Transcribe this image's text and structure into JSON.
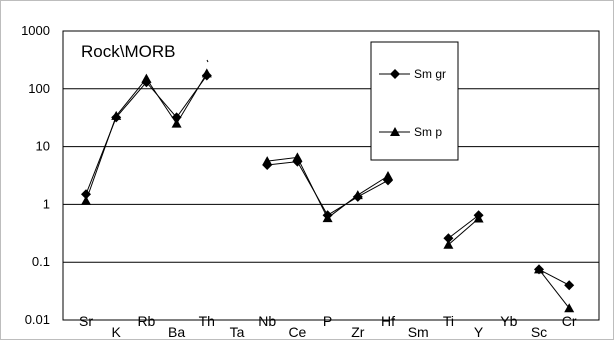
{
  "chart_data": {
    "type": "line",
    "title": "Rock\\MORB",
    "xlabel": "",
    "ylabel": "",
    "y_scale": "log",
    "ylim": [
      0.01,
      1000
    ],
    "y_ticks": [
      "0.01",
      "0.1",
      "1",
      "10",
      "100",
      "1000"
    ],
    "grid": "horizontal",
    "legend_position": "top-right",
    "categories": [
      "Sr",
      "K",
      "Rb",
      "Ba",
      "Th",
      "Ta",
      "Nb",
      "Ce",
      "P",
      "Zr",
      "Hf",
      "Sm",
      "Ti",
      "Y",
      "Yb",
      "Sc",
      "Cr"
    ],
    "series": [
      {
        "name": "Sm gr",
        "marker": "diamond",
        "color": "#000000",
        "values": [
          1.5,
          32,
          130,
          32,
          170,
          null,
          4.8,
          5.5,
          0.65,
          1.35,
          2.6,
          null,
          0.26,
          0.65,
          null,
          0.075,
          0.04
        ]
      },
      {
        "name": "Sm p",
        "marker": "triangle",
        "color": "#000000",
        "values": [
          1.15,
          34,
          150,
          25,
          185,
          null,
          5.6,
          6.5,
          0.58,
          1.45,
          3.1,
          null,
          0.2,
          0.57,
          null,
          0.075,
          0.016
        ]
      }
    ]
  }
}
